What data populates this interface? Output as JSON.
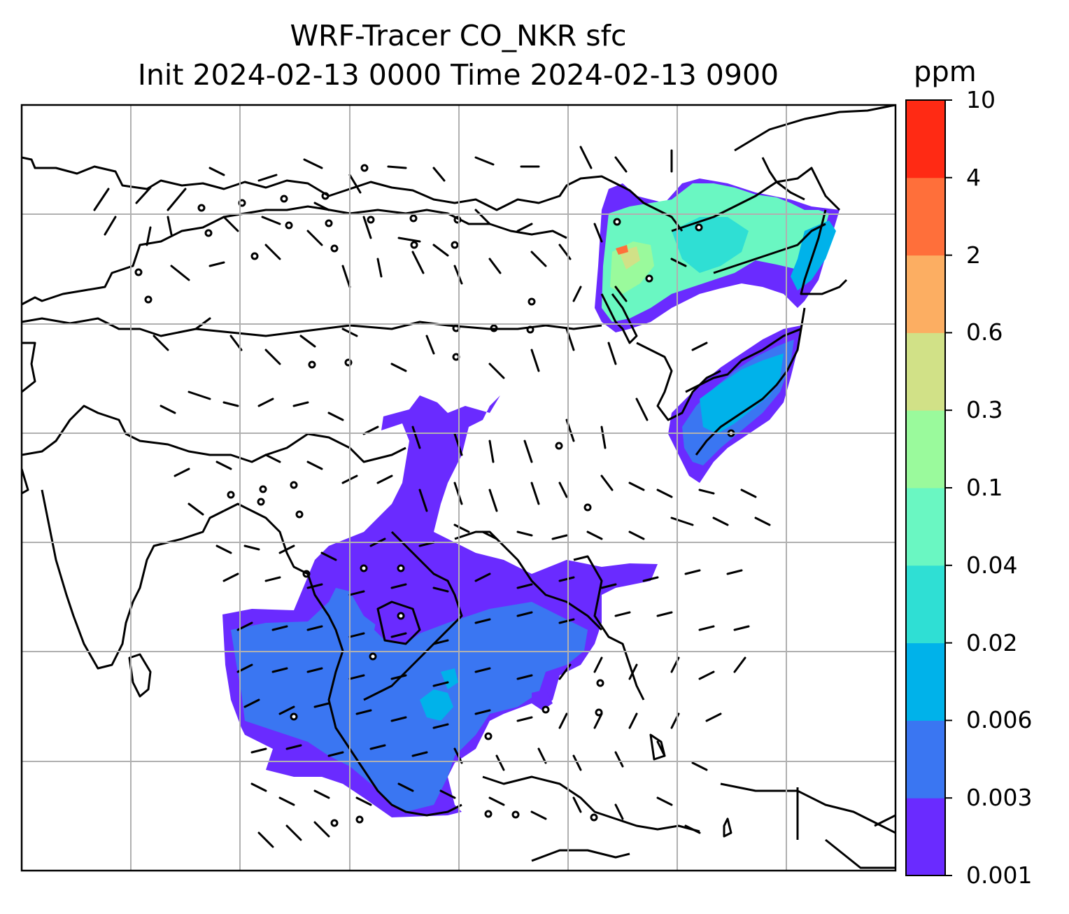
{
  "title": {
    "line1": "WRF-Tracer CO_NKR sfc",
    "line2": "Init 2024-02-13 0000 Time 2024-02-13 0900"
  },
  "colorbar": {
    "unit": "ppm",
    "levels": [
      "0.001",
      "0.003",
      "0.006",
      "0.02",
      "0.04",
      "0.1",
      "0.3",
      "0.6",
      "2",
      "4",
      "10"
    ],
    "colors": [
      "#6a2bff",
      "#3a76f2",
      "#00b2ea",
      "#2fdfd4",
      "#6af7c2",
      "#9afa9c",
      "#d1e187",
      "#fcae62",
      "#ff6f3a",
      "#ff2a14"
    ]
  },
  "map": {
    "gridlines": true,
    "grid_color": "#b0b0b0",
    "coastline_color": "#000000",
    "overlay": "wind barbs"
  }
}
